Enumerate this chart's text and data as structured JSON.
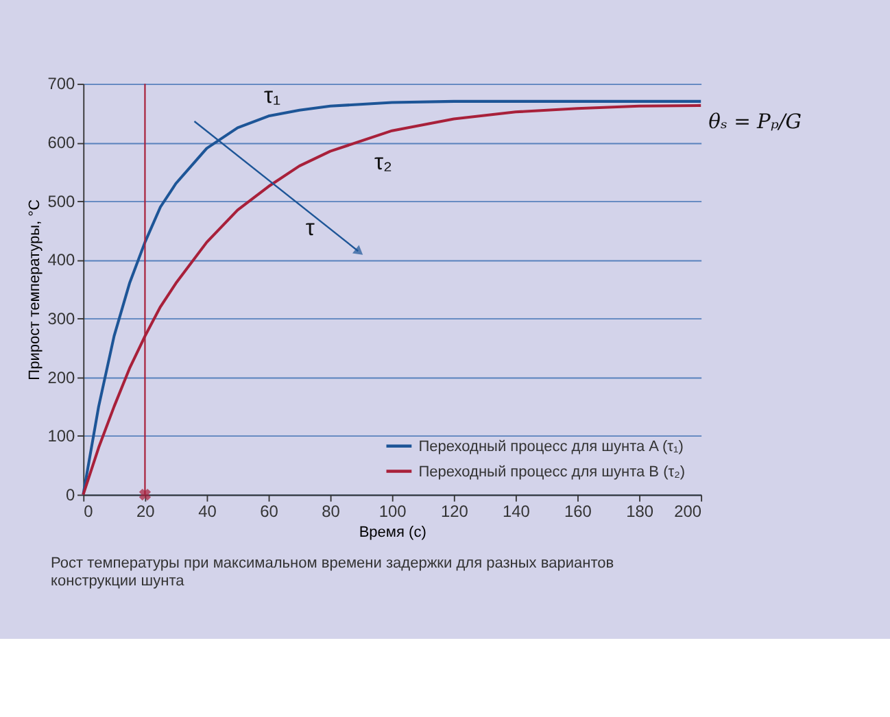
{
  "chart_data": {
    "type": "line",
    "xlabel": "Время (с)",
    "ylabel": "Прирост температуры, °C",
    "xlim": [
      0,
      200
    ],
    "xticks": [
      0,
      20,
      40,
      60,
      80,
      100,
      120,
      140,
      160,
      180,
      200
    ],
    "ylim": [
      0,
      700
    ],
    "yticks": [
      0,
      100,
      200,
      300,
      400,
      500,
      600,
      700
    ],
    "grid": "y",
    "legend": "bottom right",
    "line_style": "solid",
    "series": [
      {
        "name": "Переходный процесс для шунта A (τ₁)",
        "color": "#1d5597",
        "x": [
          0,
          5,
          10,
          15,
          20,
          25,
          30,
          40,
          50,
          60,
          70,
          80,
          100,
          120,
          140,
          160,
          180,
          200
        ],
        "values": [
          0,
          150,
          270,
          360,
          430,
          490,
          530,
          590,
          625,
          645,
          655,
          662,
          668,
          670,
          670,
          670,
          670,
          670
        ]
      },
      {
        "name": "Переходный процесс для шунта B (τ₂)",
        "color": "#a8203a",
        "x": [
          0,
          5,
          10,
          15,
          20,
          25,
          30,
          40,
          50,
          60,
          70,
          80,
          100,
          120,
          140,
          160,
          180,
          200
        ],
        "values": [
          0,
          80,
          150,
          215,
          270,
          320,
          360,
          430,
          485,
          525,
          560,
          585,
          620,
          640,
          652,
          658,
          662,
          663
        ]
      },
      {
        "type": "line",
        "color": "#1d5597",
        "x": [
          36,
          89
        ],
        "values": [
          636,
          415
        ],
        "marker": "triangle"
      },
      {
        "type": "scatter",
        "color": "#a8203a",
        "x": [
          20
        ],
        "values": [
          0
        ],
        "marker": "cross"
      }
    ],
    "ref_lines": [
      {
        "axis": "x",
        "value": 20,
        "color": "#a8203a"
      }
    ],
    "annotations": [
      "τ₁",
      "τ₂",
      "τ",
      "θₛ = Pₚ/G",
      "Рост температуры при максимальном времени задержки для разных вариантов конструкции шунта"
    ]
  }
}
